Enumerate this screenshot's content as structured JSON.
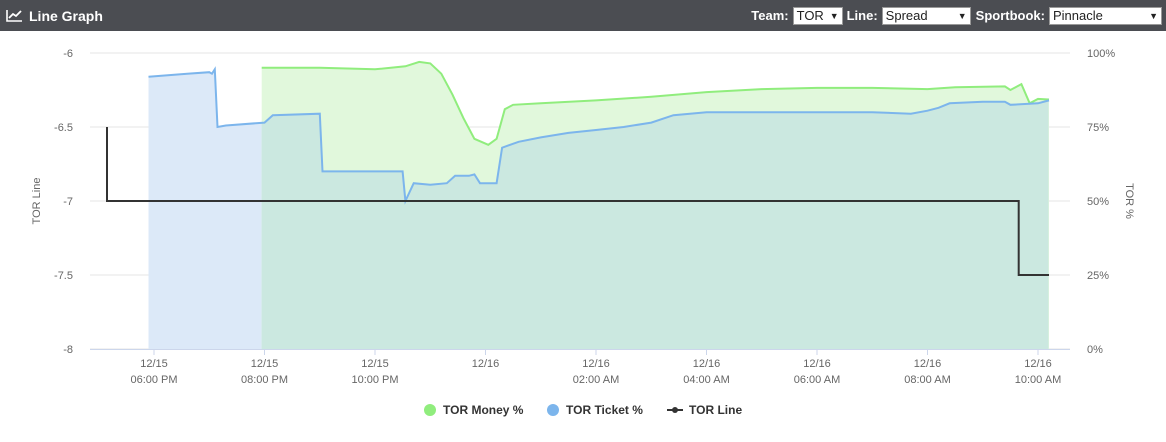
{
  "header": {
    "title": "Line Graph",
    "icon": "line-chart-icon",
    "team_label": "Team:",
    "team_value": "TOR",
    "line_label": "Line:",
    "line_value": "Spread",
    "sportbook_label": "Sportbook:",
    "sportbook_value": "Pinnacle"
  },
  "chart_data": {
    "type": "line",
    "xlabel": "",
    "ylabel_left": "TOR Line",
    "ylabel_right": "TOR %",
    "x_ticks": [
      {
        "hour": 0,
        "line1": "12/15",
        "line2": "06:00 PM"
      },
      {
        "hour": 2,
        "line1": "12/15",
        "line2": "08:00 PM"
      },
      {
        "hour": 4,
        "line1": "12/15",
        "line2": "10:00 PM"
      },
      {
        "hour": 6,
        "line1": "12/16",
        "line2": ""
      },
      {
        "hour": 8,
        "line1": "12/16",
        "line2": "02:00 AM"
      },
      {
        "hour": 10,
        "line1": "12/16",
        "line2": "04:00 AM"
      },
      {
        "hour": 12,
        "line1": "12/16",
        "line2": "06:00 AM"
      },
      {
        "hour": 14,
        "line1": "12/16",
        "line2": "08:00 AM"
      },
      {
        "hour": 16,
        "line1": "12/16",
        "line2": "10:00 AM"
      }
    ],
    "x_range_hours": [
      -1,
      16.3
    ],
    "y_left_ticks": [
      "-6",
      "-6.5",
      "-7",
      "-7.5",
      "-8"
    ],
    "y_left_range": [
      -8,
      -6
    ],
    "y_right_ticks": [
      "100%",
      "75%",
      "50%",
      "25%",
      "0%"
    ],
    "y_right_range": [
      0,
      100
    ],
    "grid": true,
    "legend_position": "bottom",
    "colors": {
      "money_line": "#90ed7d",
      "money_fill": "#e1f8dc",
      "ticket_line": "#7cb5ec",
      "ticket_fill": "#dce9f8",
      "overlap_fill": "#cbe8e0",
      "line": "#333333"
    },
    "series": [
      {
        "name": "TOR Money %",
        "axis": "right",
        "points": [
          [
            1.95,
            95
          ],
          [
            3,
            95
          ],
          [
            4,
            94.5
          ],
          [
            4.55,
            95.5
          ],
          [
            4.8,
            97
          ],
          [
            5,
            96.5
          ],
          [
            5.2,
            93
          ],
          [
            5.4,
            86
          ],
          [
            5.6,
            78
          ],
          [
            5.8,
            71
          ],
          [
            6.05,
            69
          ],
          [
            6.2,
            71
          ],
          [
            6.35,
            81
          ],
          [
            6.5,
            82.5
          ],
          [
            7,
            83
          ],
          [
            8,
            84
          ],
          [
            9,
            85.2
          ],
          [
            10,
            86.8
          ],
          [
            11,
            87.8
          ],
          [
            12,
            88.2
          ],
          [
            13,
            88.2
          ],
          [
            14,
            87.8
          ],
          [
            14.5,
            88.4
          ],
          [
            15.4,
            88.7
          ],
          [
            15.5,
            87.5
          ],
          [
            15.7,
            89.5
          ],
          [
            15.85,
            83
          ],
          [
            16,
            84.5
          ],
          [
            16.2,
            84.3
          ]
        ]
      },
      {
        "name": "TOR Ticket %",
        "axis": "right",
        "points": [
          [
            -0.1,
            92
          ],
          [
            0.6,
            93
          ],
          [
            1,
            93.5
          ],
          [
            1.05,
            93
          ],
          [
            1.1,
            94.5
          ],
          [
            1.15,
            75
          ],
          [
            1.3,
            75.5
          ],
          [
            2,
            76.5
          ],
          [
            2.15,
            79
          ],
          [
            3,
            79.5
          ],
          [
            3.05,
            60
          ],
          [
            4,
            60
          ],
          [
            4.5,
            60
          ],
          [
            4.55,
            50
          ],
          [
            4.7,
            56
          ],
          [
            5,
            55.5
          ],
          [
            5.3,
            56
          ],
          [
            5.45,
            58.5
          ],
          [
            5.7,
            58.5
          ],
          [
            5.8,
            59
          ],
          [
            5.9,
            56
          ],
          [
            6.2,
            56
          ],
          [
            6.3,
            68
          ],
          [
            6.6,
            70
          ],
          [
            7,
            71.5
          ],
          [
            7.5,
            73
          ],
          [
            8,
            74
          ],
          [
            8.5,
            75
          ],
          [
            9,
            76.5
          ],
          [
            9.4,
            79
          ],
          [
            10,
            80
          ],
          [
            11,
            80
          ],
          [
            12,
            80
          ],
          [
            13,
            80
          ],
          [
            13.7,
            79.5
          ],
          [
            14,
            80.5
          ],
          [
            14.2,
            81.5
          ],
          [
            14.4,
            83
          ],
          [
            15,
            83.5
          ],
          [
            15.4,
            83.5
          ],
          [
            15.5,
            82.5
          ],
          [
            16,
            83
          ],
          [
            16.2,
            84
          ]
        ]
      },
      {
        "name": "TOR Line",
        "axis": "left",
        "points": [
          [
            -0.85,
            -6.5
          ],
          [
            -0.85,
            -7
          ],
          [
            15.65,
            -7
          ],
          [
            15.65,
            -7.5
          ],
          [
            16.2,
            -7.5
          ]
        ]
      }
    ]
  }
}
